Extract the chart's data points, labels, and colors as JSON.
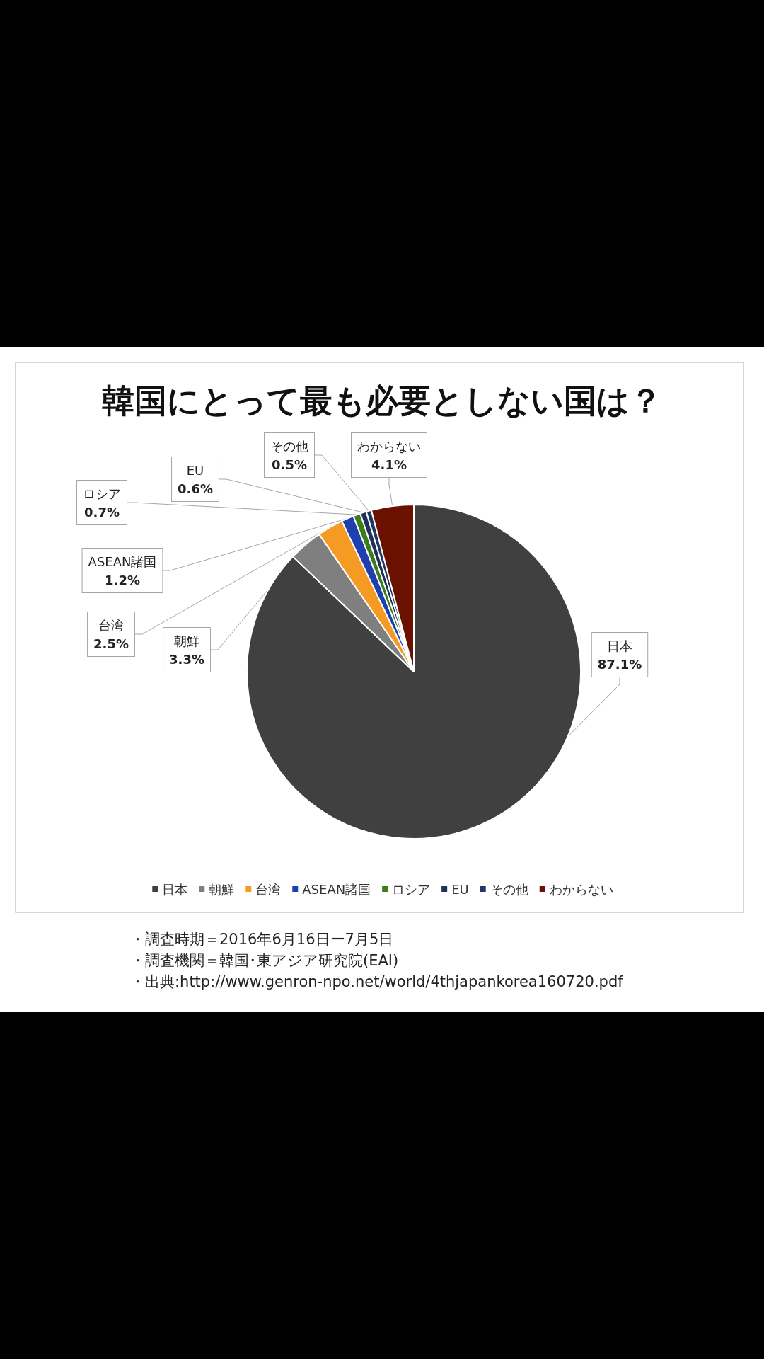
{
  "chart_data": {
    "type": "pie",
    "title": "韓国にとって最も必要としない国は？",
    "categories": [
      "日本",
      "朝鮮",
      "台湾",
      "ASEAN諸国",
      "ロシア",
      "EU",
      "その他",
      "わからない"
    ],
    "values": [
      87.1,
      3.3,
      2.5,
      1.2,
      0.7,
      0.6,
      0.5,
      4.1
    ],
    "value_labels": [
      "87.1%",
      "3.3%",
      "2.5%",
      "1.2%",
      "0.7%",
      "0.6%",
      "0.5%",
      "4.1%"
    ],
    "colors": [
      "#404040",
      "#7f7f7f",
      "#f59a23",
      "#1f3fae",
      "#3a7d1a",
      "#1f2f5a",
      "#203864",
      "#6b1100"
    ],
    "legend": "bottom",
    "annotations": [
      "・調査時期＝2016年6月16日ー7月5日",
      "・調査機関＝韓国･東アジア研究院(EAI)",
      "・出典:http://www.genron-npo.net/world/4thjapankorea160720.pdf"
    ]
  }
}
